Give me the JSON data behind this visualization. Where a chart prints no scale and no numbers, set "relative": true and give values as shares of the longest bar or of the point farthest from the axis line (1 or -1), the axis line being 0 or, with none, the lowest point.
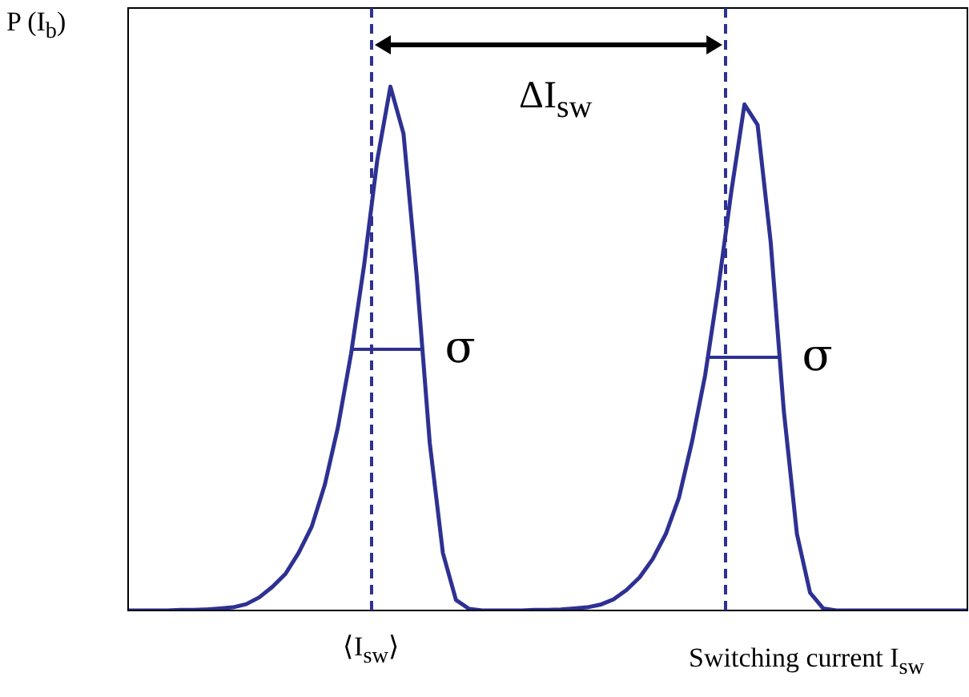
{
  "chart_data": {
    "type": "line",
    "relative": true,
    "xlabel": "Switching current I$_{sw}$",
    "ylabel": "P (I$_{b}$)",
    "categories": [
      null,
      null,
      null,
      null,
      null,
      null,
      null,
      null,
      null,
      null,
      null,
      null,
      null,
      null,
      null,
      null,
      null,
      null,
      null,
      null,
      null,
      null,
      null,
      null,
      null,
      null,
      null,
      null,
      null,
      null,
      null,
      null,
      null,
      null,
      null,
      null,
      null,
      null,
      null,
      null,
      null,
      null,
      null,
      null,
      null,
      null,
      null,
      null,
      null,
      null,
      null,
      null,
      null,
      null,
      null,
      null,
      null,
      null,
      null,
      null,
      null,
      null,
      null,
      null,
      null
    ],
    "grid": false,
    "legend": false,
    "marker": "none",
    "line_style": "solid",
    "series": [
      {
        "color": "#2e3192",
        "values": [
          0,
          0,
          0,
          0,
          0.001,
          0.001,
          0.002,
          0.004,
          0.006,
          0.012,
          0.025,
          0.045,
          0.07,
          0.11,
          0.16,
          0.24,
          0.35,
          0.49,
          0.66,
          0.86,
          1.0,
          0.91,
          0.64,
          0.32,
          0.11,
          0.02,
          0.003,
          0,
          0,
          0,
          0,
          0.001,
          0.001,
          0.002,
          0.004,
          0.006,
          0.011,
          0.021,
          0.039,
          0.063,
          0.098,
          0.146,
          0.215,
          0.322,
          0.449,
          0.615,
          0.8,
          0.966,
          0.927,
          0.703,
          0.381,
          0.146,
          0.034,
          0.004,
          0,
          0,
          0,
          0,
          0,
          0,
          0,
          0,
          0,
          0,
          0
        ]
      }
    ],
    "annotations": [
      "σ",
      "σ",
      "ΔI$_{sw}$",
      "⟨I$_{sw}$⟩"
    ]
  }
}
